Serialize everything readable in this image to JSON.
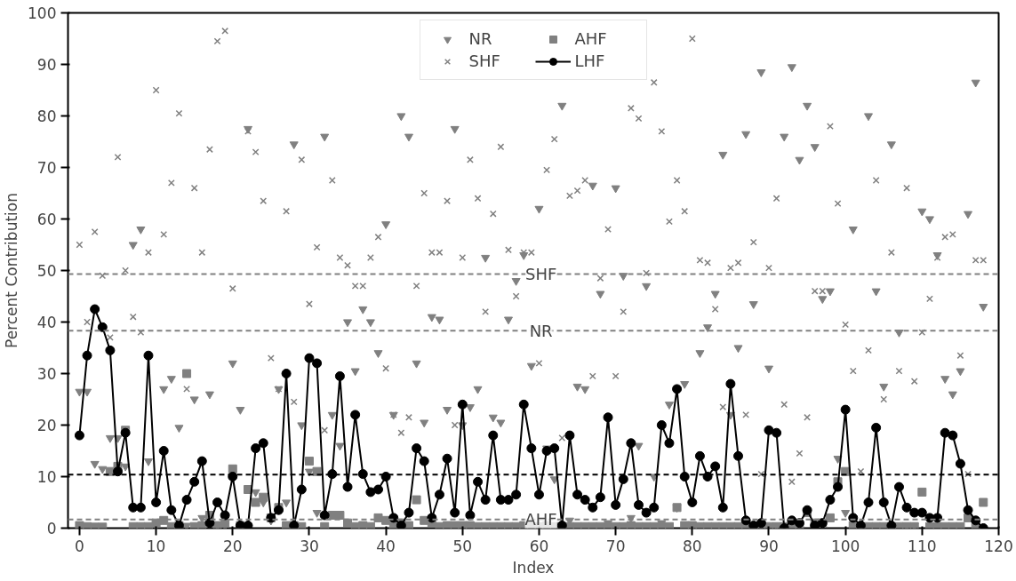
{
  "chart_data": {
    "type": "scatter",
    "xlabel": "Index",
    "ylabel": "Percent Contribution",
    "x": [
      0,
      1,
      2,
      3,
      4,
      5,
      6,
      7,
      8,
      9,
      10,
      11,
      12,
      13,
      14,
      15,
      16,
      17,
      18,
      19,
      20,
      21,
      22,
      23,
      24,
      25,
      26,
      27,
      28,
      29,
      30,
      31,
      32,
      33,
      34,
      35,
      36,
      37,
      38,
      39,
      40,
      41,
      42,
      43,
      44,
      45,
      46,
      47,
      48,
      49,
      50,
      51,
      52,
      53,
      54,
      55,
      56,
      57,
      58,
      59,
      60,
      61,
      62,
      63,
      64,
      65,
      66,
      67,
      68,
      69,
      70,
      71,
      72,
      73,
      74,
      75,
      76,
      77,
      78,
      79,
      80,
      81,
      82,
      83,
      84,
      85,
      86,
      87,
      88,
      89,
      90,
      91,
      92,
      93,
      94,
      95,
      96,
      97,
      98,
      99,
      100,
      101,
      102,
      103,
      104,
      105,
      106,
      107,
      108,
      109,
      110,
      111,
      112,
      113,
      114,
      115,
      116,
      117,
      118
    ],
    "series": [
      {
        "name": "NR",
        "marker": "triangle_down",
        "color": "#808080",
        "values": [
          26.5,
          26.5,
          12.5,
          11.5,
          17.5,
          17.5,
          12,
          55,
          58,
          13,
          0.5,
          27,
          29,
          19.5,
          0.5,
          25,
          2,
          26,
          0.5,
          0.5,
          32,
          23,
          77.5,
          7,
          5,
          1.5,
          27,
          5,
          74.5,
          20,
          11,
          3,
          76,
          22,
          16,
          40,
          30.5,
          42.5,
          40,
          34,
          59,
          22,
          80,
          76,
          32,
          20.5,
          41,
          40.5,
          23,
          77.5,
          20,
          23.5,
          27,
          52.5,
          21.5,
          20.5,
          40.5,
          48,
          53,
          31.5,
          62,
          15.5,
          9.5,
          82,
          1.5,
          27.5,
          27,
          66.5,
          45.5,
          1,
          66,
          49,
          2,
          16,
          47,
          10,
          1,
          24,
          4,
          28,
          0.5,
          34,
          39,
          45.5,
          72.5,
          22,
          35,
          76.5,
          43.5,
          88.5,
          31,
          0.5,
          76,
          89.5,
          71.5,
          82,
          74,
          44.5,
          46,
          13.5,
          3,
          58,
          0.5,
          80,
          46,
          27.5,
          74.5,
          38,
          0.5,
          0.5,
          61.5,
          60,
          53,
          29,
          26,
          30.5,
          61,
          86.5,
          43
        ]
      },
      {
        "name": "SHF",
        "marker": "cross",
        "color": "#808080",
        "values": [
          55,
          40,
          57.5,
          49,
          37,
          72,
          50,
          41,
          38,
          53.5,
          85,
          57,
          67,
          80.5,
          27,
          66,
          53.5,
          73.5,
          94.5,
          96.5,
          46.5,
          0.5,
          77,
          73,
          63.5,
          33,
          27,
          61.5,
          24.5,
          71.5,
          43.5,
          54.5,
          19,
          67.5,
          52.5,
          51,
          47,
          47,
          52.5,
          56.5,
          31,
          22,
          18.5,
          21.5,
          47,
          65,
          53.5,
          53.5,
          63.5,
          20,
          52.5,
          71.5,
          64,
          42,
          61,
          74,
          54,
          45,
          53.5,
          53.5,
          32,
          69.5,
          75.5,
          17.5,
          64.5,
          65.5,
          67.5,
          29.5,
          48.5,
          58,
          29.5,
          42,
          81.5,
          79.5,
          49.5,
          86.5,
          77,
          59.5,
          67.5,
          61.5,
          95,
          52,
          51.5,
          42.5,
          23.5,
          50.5,
          51.5,
          22,
          55.5,
          10.5,
          50.5,
          64,
          24,
          9,
          14.5,
          21.5,
          46,
          46,
          78,
          63,
          39.5,
          30.5,
          11,
          34.5,
          67.5,
          25,
          53.5,
          30.5,
          66,
          28.5,
          38,
          44.5,
          52.5,
          56.5,
          57,
          33.5,
          10.5,
          52,
          52
        ]
      },
      {
        "name": "AHF",
        "marker": "square",
        "color": "#808080",
        "values": [
          0.5,
          0.3,
          0.2,
          0.2,
          11,
          12,
          19,
          0.3,
          0.3,
          0.3,
          1,
          1.5,
          0.3,
          0.5,
          30,
          0.3,
          0.5,
          2.5,
          0.5,
          1,
          11.5,
          0.5,
          7.5,
          5,
          6,
          2,
          4,
          0.5,
          0.5,
          0.3,
          13,
          11,
          0.3,
          2.5,
          2.5,
          1,
          0.3,
          0.5,
          0.3,
          2,
          1.5,
          0.5,
          1,
          0.5,
          5.5,
          1.5,
          1,
          0.3,
          0.5,
          0.5,
          0.5,
          0.5,
          0.3,
          0.3,
          0.3,
          0.3,
          0.3,
          0.3,
          0.5,
          0.3,
          0.3,
          0.5,
          0.3,
          0.3,
          0.3,
          0.3,
          0.3,
          0.3,
          0.3,
          0.3,
          0.3,
          0.3,
          0.5,
          0.3,
          0.3,
          0.3,
          0.3,
          0.3,
          4,
          0.5,
          0.5,
          0.3,
          0.3,
          0.3,
          0.3,
          0.3,
          0.3,
          0.3,
          0.3,
          0.3,
          0.3,
          0.3,
          0.3,
          0.3,
          0.3,
          3,
          1,
          1,
          2,
          9,
          11,
          0.5,
          0.3,
          0.3,
          0.3,
          0.3,
          0.3,
          0.3,
          0.3,
          0.3,
          7,
          0.3,
          0.3,
          0.3,
          0.3,
          0.3,
          2,
          0.3,
          5
        ]
      },
      {
        "name": "LHF",
        "type": "line",
        "marker": "circle",
        "color": "#000000",
        "values": [
          18,
          33.5,
          42.5,
          39,
          34.5,
          11,
          18.5,
          4,
          4,
          33.5,
          5,
          15,
          3.5,
          0.5,
          5.5,
          9,
          13,
          1,
          5,
          2.5,
          10,
          0.5,
          0.5,
          15.5,
          16.5,
          2,
          3.5,
          30,
          0.5,
          7.5,
          33,
          32,
          2.5,
          10.5,
          29.5,
          8,
          22,
          10.5,
          7,
          7.5,
          10,
          2,
          0.5,
          3,
          15.5,
          13,
          2,
          6.5,
          13.5,
          3,
          24,
          2.5,
          9,
          5.5,
          18,
          5.5,
          5.5,
          6.5,
          24,
          15.5,
          6.5,
          15,
          15.5,
          0.5,
          18,
          6.5,
          5.5,
          4,
          6,
          21.5,
          4.5,
          9.5,
          16.5,
          4.5,
          3,
          4,
          20,
          16.5,
          27,
          10,
          5,
          14,
          10,
          12,
          4,
          28,
          14,
          1.5,
          0.5,
          1,
          19,
          18.5,
          0,
          1.5,
          1,
          3.5,
          0.5,
          1,
          5.5,
          8,
          23,
          2,
          0.5,
          5,
          19.5,
          5,
          0.5,
          8,
          4,
          3,
          3,
          2,
          2,
          18.5,
          18,
          12.5,
          3.5,
          1.5,
          0
        ]
      }
    ],
    "ref_lines": [
      {
        "axis": "y",
        "value": 49.3,
        "label": "SHF",
        "color": "#808080",
        "line_style": "dashed"
      },
      {
        "axis": "y",
        "value": 38.3,
        "label": "NR",
        "color": "#808080",
        "line_style": "dashed"
      },
      {
        "axis": "y",
        "value": 10.4,
        "label": null,
        "color": "#000000",
        "line_style": "dashed"
      },
      {
        "axis": "y",
        "value": 1.7,
        "label": "AHF",
        "color": "#808080",
        "line_style": "dashed"
      }
    ],
    "xlim": [
      -1.5,
      120
    ],
    "xticks": [
      0,
      10,
      20,
      30,
      40,
      50,
      60,
      70,
      80,
      90,
      100,
      110,
      120
    ],
    "ylim": [
      0,
      100
    ],
    "yticks": [
      0,
      10,
      20,
      30,
      40,
      50,
      60,
      70,
      80,
      90,
      100
    ],
    "grid": false,
    "legend": "top"
  }
}
